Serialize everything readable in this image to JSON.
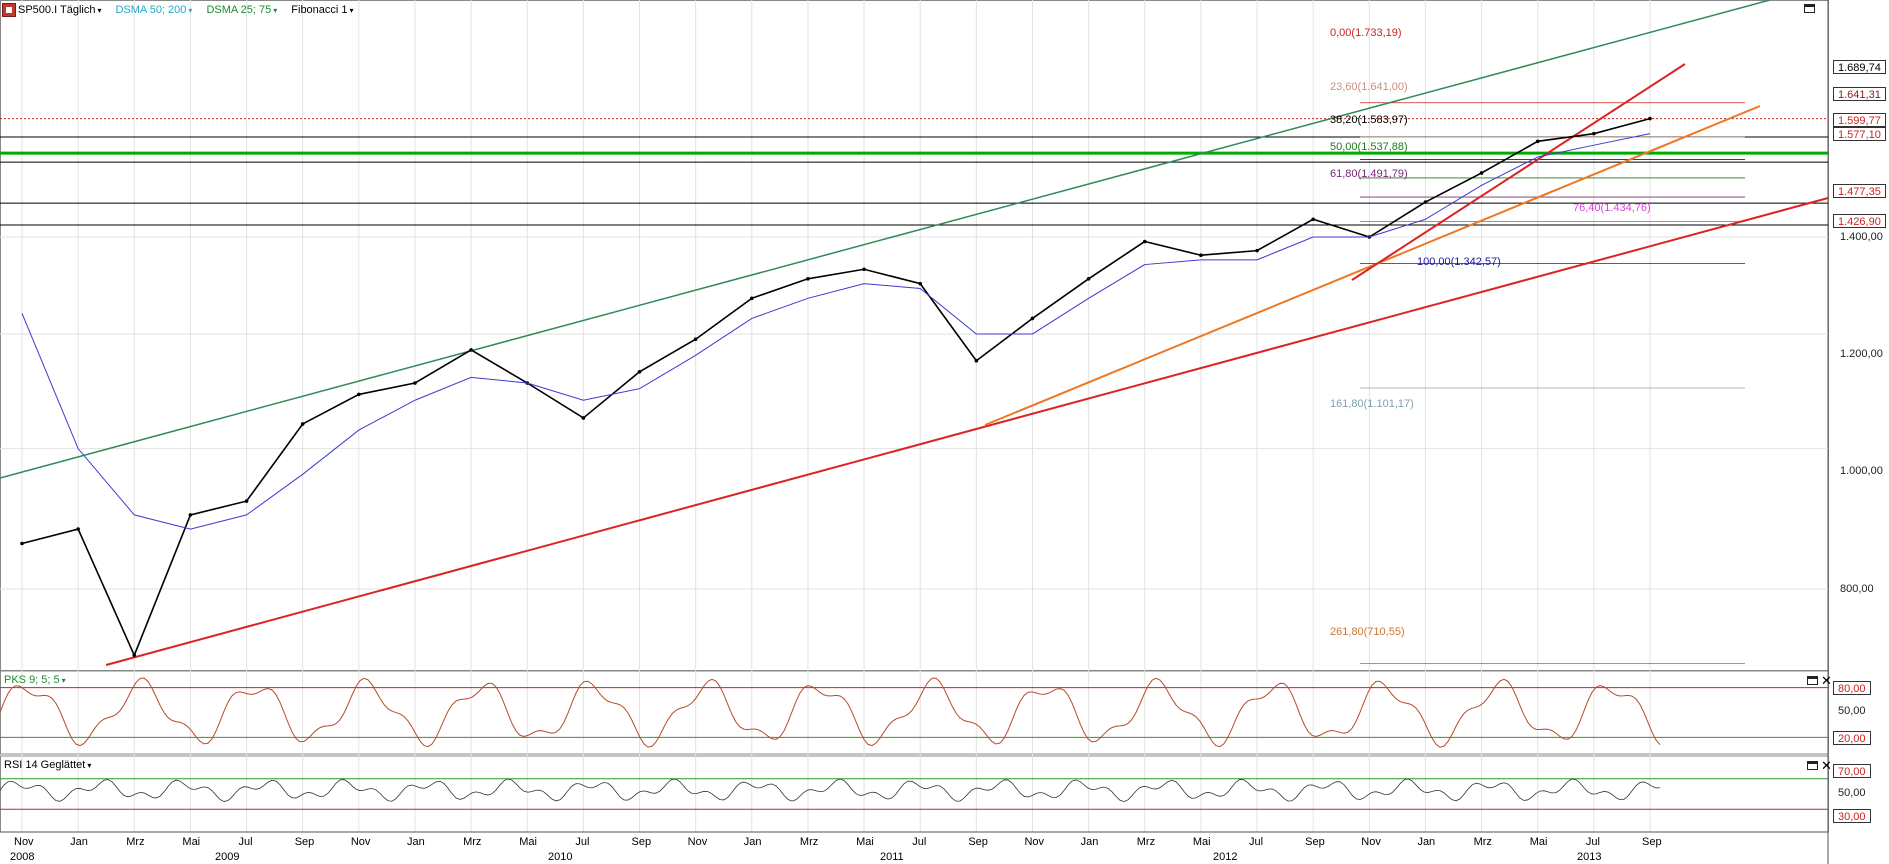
{
  "toolbar": {
    "symbol": "SP500.I Täglich",
    "indicator1": "DSMA 50; 200",
    "indicator2": "DSMA 25; 75",
    "fibonacci": "Fibonacci 1",
    "indicator1_color": "#21a8c8",
    "indicator2_color": "#1e8a2e"
  },
  "panels": {
    "stochastic_label": "PKS 9; 5; 5",
    "rsi_label": "RSI 14 Geglättet"
  },
  "price_tags": [
    {
      "text": "1.689,74",
      "color": "#000000"
    },
    {
      "text": "1.641,31",
      "color": "#8a1a1a"
    },
    {
      "text": "1.599,77",
      "color": "#cc2222"
    },
    {
      "text": "1.577,10",
      "color": "#cc2222"
    },
    {
      "text": "1.477,35",
      "color": "#cc2222"
    },
    {
      "text": "1.426,90",
      "color": "#cc2222"
    }
  ],
  "y_axis_ticks": [
    "1.400,00",
    "1.200,00",
    "1.000,00",
    "800,00"
  ],
  "stoch_ticks": [
    "80,00",
    "50,00",
    "20,00"
  ],
  "rsi_ticks": [
    "70,00",
    "50,00",
    "30,00"
  ],
  "fib_levels": [
    {
      "text": "0,00(1.733,19)",
      "color": "#cc2222"
    },
    {
      "text": "23,60(1.641,00)",
      "color": "#c99080"
    },
    {
      "text": "38,20(1.583,97)",
      "color": "#000000"
    },
    {
      "text": "50,00(1.537,88)",
      "color": "#1e7a1e"
    },
    {
      "text": "61,80(1.491,79)",
      "color": "#7a2a7a"
    },
    {
      "text": "76,40(1.434,76)",
      "color": "#dd44dd"
    },
    {
      "text": "100,00(1.342,57)",
      "color": "#1a1aa0"
    },
    {
      "text": "161,80(1.101,17)",
      "color": "#7fa0b0"
    },
    {
      "text": "261,80(710,55)",
      "color": "#cc7733"
    }
  ],
  "x_months": [
    "Nov",
    "Jan",
    "Mrz",
    "Mai",
    "Jul",
    "Sep",
    "Nov",
    "Jan",
    "Mrz",
    "Mai",
    "Jul",
    "Sep",
    "Nov",
    "Jan",
    "Mrz",
    "Mai",
    "Jul",
    "Sep",
    "Nov",
    "Jan",
    "Mrz",
    "Mai",
    "Jul",
    "Sep",
    "Nov",
    "Jan",
    "Mrz",
    "Mai",
    "Jul",
    "Sep"
  ],
  "x_years": [
    "2008",
    "2009",
    "2010",
    "2011",
    "2012",
    "2013"
  ],
  "chart_data": {
    "type": "line",
    "x": [
      "2008-11",
      "2009-01",
      "2009-03",
      "2009-05",
      "2009-07",
      "2009-09",
      "2009-11",
      "2010-01",
      "2010-03",
      "2010-05",
      "2010-07",
      "2010-09",
      "2010-11",
      "2011-01",
      "2011-03",
      "2011-05",
      "2011-07",
      "2011-09",
      "2011-11",
      "2012-01",
      "2012-03",
      "2012-05",
      "2012-07",
      "2012-09",
      "2012-11",
      "2013-01",
      "2013-03",
      "2013-05",
      "2013-07",
      "2013-09"
    ],
    "series": [
      {
        "values": [
          860,
          880,
          720,
          900,
          920,
          1040,
          1090,
          1110,
          1170,
          1110,
          1050,
          1130,
          1190,
          1270,
          1310,
          1330,
          1300,
          1150,
          1230,
          1310,
          1390,
          1360,
          1370,
          1440,
          1400,
          1480,
          1550,
          1630,
          1650,
          1690
        ]
      },
      {
        "values": [
          1240,
          1000,
          900,
          880,
          900,
          960,
          1030,
          1080,
          1120,
          1110,
          1080,
          1100,
          1160,
          1230,
          1270,
          1300,
          1290,
          1200,
          1200,
          1270,
          1340,
          1350,
          1350,
          1400,
          1400,
          1440,
          1520,
          1590,
          1620,
          1650
        ]
      }
    ],
    "ylim": [
      680,
      1780
    ],
    "reference_lines": [
      1689.74,
      1641.31,
      1599.77,
      1577.1,
      1477.35,
      1426.9
    ],
    "grid": true,
    "stochastic_bands": [
      20,
      80
    ],
    "rsi_bands": [
      30,
      70
    ]
  }
}
